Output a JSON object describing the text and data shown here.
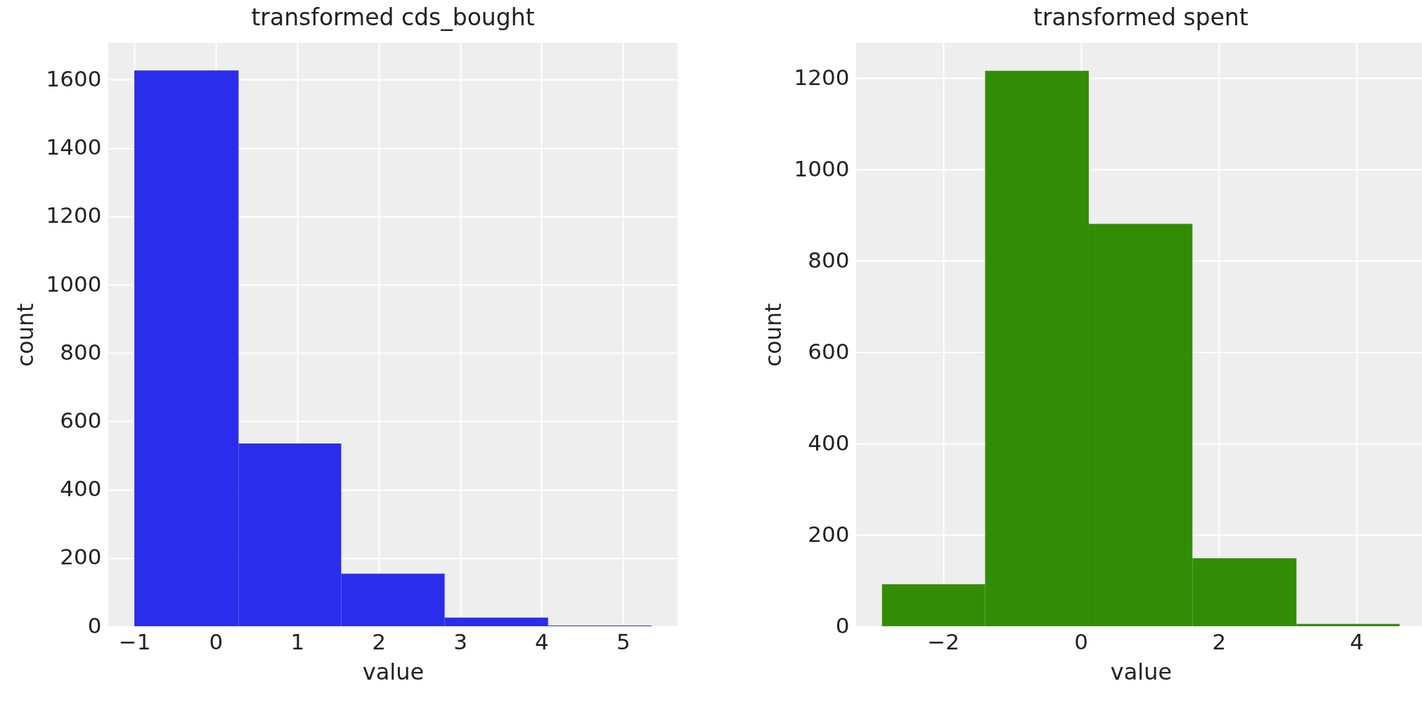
{
  "chart_data": [
    {
      "type": "histogram",
      "title": "transformed cds_bought",
      "xlabel": "value",
      "ylabel": "count",
      "bins": [
        -1.0,
        0.28,
        1.54,
        2.81,
        4.08,
        5.35
      ],
      "values": [
        1627,
        535,
        154,
        25,
        2
      ],
      "color": "#2a2eec",
      "xlim": [
        -1.32,
        5.67
      ],
      "xticks": [
        -1,
        0,
        1,
        2,
        3,
        4,
        5
      ],
      "ylim": [
        0,
        1708
      ],
      "yticks": [
        0,
        200,
        400,
        600,
        800,
        1000,
        1200,
        1400,
        1600
      ],
      "grid": true
    },
    {
      "type": "histogram",
      "title": "transformed spent",
      "xlabel": "value",
      "ylabel": "count",
      "bins": [
        -2.885,
        -1.389,
        0.115,
        1.618,
        3.127,
        4.624
      ],
      "values": [
        92,
        1216,
        881,
        149,
        5
      ],
      "color": "#328c06",
      "xlim": [
        -3.26,
        5.0
      ],
      "xticks": [
        -2,
        0,
        2,
        4
      ],
      "ylim": [
        0,
        1277
      ],
      "yticks": [
        0,
        200,
        400,
        600,
        800,
        1000,
        1200
      ],
      "grid": true
    }
  ]
}
